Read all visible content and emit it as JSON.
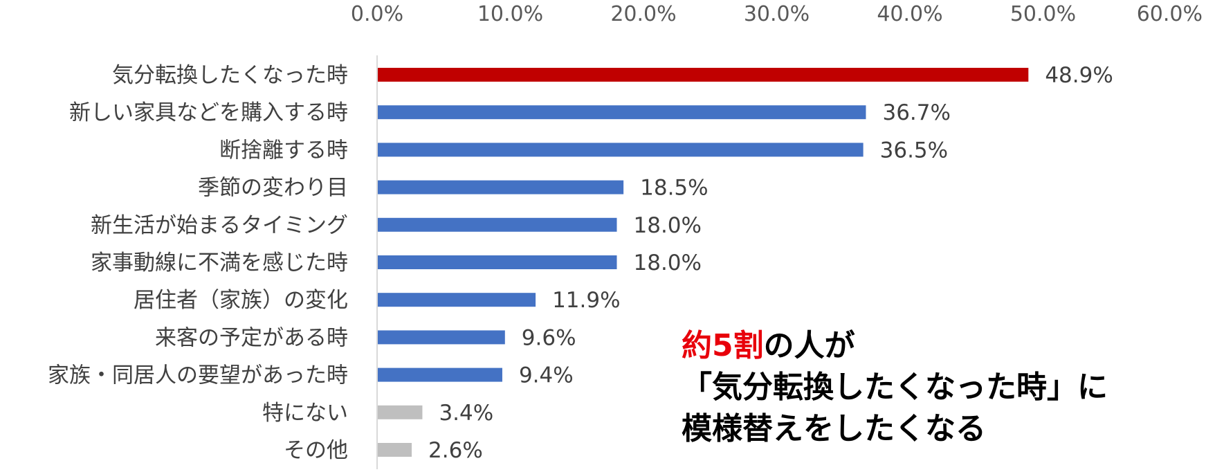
{
  "chart_data": {
    "type": "bar",
    "orientation": "horizontal",
    "categories": [
      "気分転換したくなった時",
      "新しい家具などを購入する時",
      "断捨離する時",
      "季節の変わり目",
      "新生活が始まるタイミング",
      "家事動線に不満を感じた時",
      "居住者（家族）の変化",
      "来客の予定がある時",
      "家族・同居人の要望があった時",
      "特にない",
      "その他"
    ],
    "values": [
      48.9,
      36.7,
      36.5,
      18.5,
      18.0,
      18.0,
      11.9,
      9.6,
      9.4,
      3.4,
      2.6
    ],
    "value_labels": [
      "48.9%",
      "36.7%",
      "36.5%",
      "18.5%",
      "18.0%",
      "18.0%",
      "11.9%",
      "9.6%",
      "9.4%",
      "3.4%",
      "2.6%"
    ],
    "bar_colors": [
      "#c00000",
      "#4472c4",
      "#4472c4",
      "#4472c4",
      "#4472c4",
      "#4472c4",
      "#4472c4",
      "#4472c4",
      "#4472c4",
      "#bfbfbf",
      "#bfbfbf"
    ],
    "xlim": [
      0,
      60
    ],
    "x_ticks": [
      "0.0%",
      "10.0%",
      "20.0%",
      "30.0%",
      "40.0%",
      "50.0%",
      "60.0%"
    ],
    "axis_position": "top",
    "grid": false
  },
  "callout": {
    "highlight": "約5割",
    "line1_rest": "の人が",
    "line2": "「気分転換したくなった時」に",
    "line3": "模様替えをしたくなる",
    "highlight_color": "#e8000b"
  }
}
